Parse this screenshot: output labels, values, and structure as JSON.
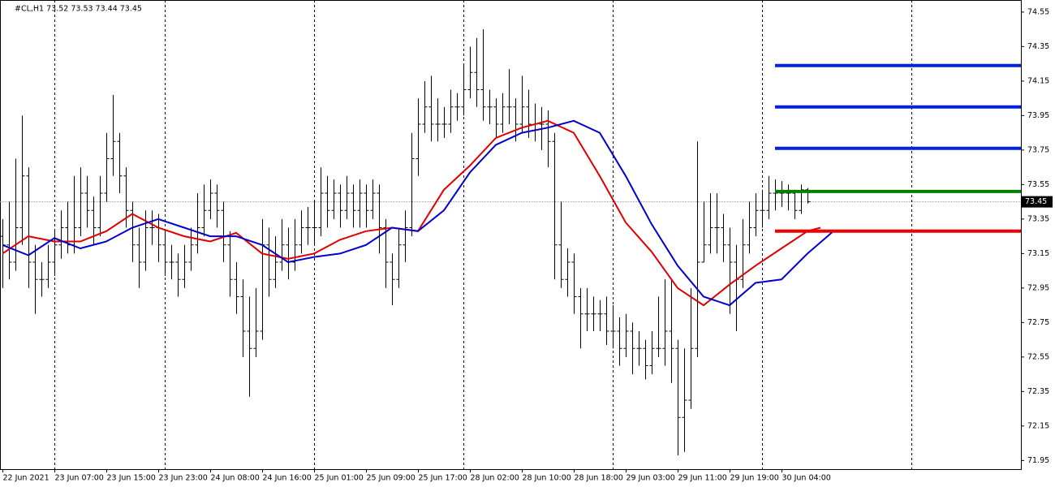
{
  "chart_data": {
    "type": "ohlc",
    "title": "#CL,H1  73.52 73.53 73.44 73.45",
    "bar_color": "#000000",
    "open": [
      73.25,
      73.2,
      73.1,
      73.3,
      73.6,
      73.1,
      73.0,
      73.0,
      73.1,
      73.2,
      73.3,
      73.2,
      73.3,
      73.5,
      73.4,
      73.3,
      73.5,
      73.7,
      73.8,
      73.6,
      73.4,
      73.2,
      73.1,
      73.3,
      73.3,
      73.2,
      73.1,
      73.1,
      73.0,
      73.1,
      73.2,
      73.3,
      73.4,
      73.5,
      73.4,
      73.2,
      73.0,
      72.9,
      72.7,
      72.6,
      72.7,
      73.2,
      73.0,
      73.1,
      73.2,
      73.1,
      73.2,
      73.3,
      73.3,
      73.3,
      73.5,
      73.4,
      73.5,
      73.4,
      73.5,
      73.4,
      73.5,
      73.4,
      73.5,
      73.3,
      73.1,
      73.0,
      73.2,
      73.3,
      73.7,
      73.9,
      74.0,
      73.9,
      73.9,
      73.9,
      74.0,
      74.0,
      74.1,
      74.2,
      74.1,
      74.0,
      74.0,
      73.9,
      74.0,
      74.0,
      73.9,
      74.0,
      73.9,
      73.9,
      73.9,
      73.8,
      73.2,
      73.0,
      73.1,
      72.9,
      72.8,
      72.8,
      72.8,
      72.8,
      72.7,
      72.7,
      72.6,
      72.7,
      72.6,
      72.6,
      72.5,
      72.6,
      72.6,
      72.7,
      72.6,
      72.2,
      72.3,
      72.6,
      73.1,
      73.2,
      73.3,
      73.3,
      73.2,
      73.1,
      73.0,
      73.2,
      73.3,
      73.4,
      73.4,
      73.5,
      73.5,
      73.5,
      73.5,
      73.4,
      73.52
    ],
    "high": [
      73.35,
      73.45,
      73.7,
      73.95,
      73.65,
      73.2,
      73.1,
      73.2,
      73.28,
      73.4,
      73.45,
      73.6,
      73.65,
      73.6,
      73.48,
      73.6,
      73.85,
      74.07,
      73.85,
      73.65,
      73.45,
      73.3,
      73.4,
      73.4,
      73.38,
      73.28,
      73.2,
      73.15,
      73.2,
      73.3,
      73.5,
      73.55,
      73.58,
      73.55,
      73.45,
      73.28,
      73.1,
      73.0,
      72.9,
      72.95,
      73.35,
      73.3,
      73.25,
      73.35,
      73.3,
      73.35,
      73.4,
      73.42,
      73.45,
      73.65,
      73.6,
      73.58,
      73.55,
      73.6,
      73.55,
      73.58,
      73.55,
      73.58,
      73.55,
      73.35,
      73.15,
      73.3,
      73.4,
      73.85,
      74.05,
      74.15,
      74.18,
      74.05,
      74.0,
      74.1,
      74.08,
      74.25,
      74.35,
      74.4,
      74.45,
      74.1,
      74.05,
      74.08,
      74.22,
      74.05,
      74.18,
      74.1,
      74.02,
      74.0,
      73.98,
      73.85,
      73.45,
      73.18,
      73.15,
      72.95,
      72.95,
      72.9,
      72.88,
      72.9,
      72.85,
      72.78,
      72.8,
      72.75,
      72.7,
      72.65,
      72.7,
      72.9,
      73.0,
      73.0,
      72.65,
      72.6,
      72.95,
      73.8,
      73.45,
      73.5,
      73.5,
      73.38,
      73.3,
      73.2,
      73.35,
      73.45,
      73.5,
      73.52,
      73.6,
      73.58,
      73.57,
      73.55,
      73.52,
      73.55,
      73.53
    ],
    "low": [
      72.95,
      73.0,
      73.05,
      73.2,
      72.95,
      72.8,
      72.9,
      72.95,
      73.02,
      73.12,
      73.15,
      73.15,
      73.25,
      73.3,
      73.2,
      73.25,
      73.45,
      73.6,
      73.5,
      73.3,
      73.1,
      72.95,
      73.05,
      73.2,
      73.1,
      73.02,
      73.0,
      72.9,
      72.95,
      73.05,
      73.15,
      73.25,
      73.35,
      73.3,
      73.1,
      72.9,
      72.8,
      72.55,
      72.32,
      72.55,
      72.65,
      72.9,
      72.95,
      73.05,
      73.0,
      73.05,
      73.15,
      73.2,
      73.2,
      73.25,
      73.3,
      73.35,
      73.3,
      73.35,
      73.3,
      73.3,
      73.3,
      73.35,
      73.15,
      72.95,
      72.85,
      72.95,
      73.1,
      73.25,
      73.6,
      73.85,
      73.8,
      73.8,
      73.82,
      73.85,
      73.92,
      73.95,
      74.05,
      74.0,
      73.92,
      73.9,
      73.82,
      73.85,
      73.9,
      73.8,
      73.85,
      73.82,
      73.8,
      73.75,
      73.65,
      73.0,
      72.95,
      72.9,
      72.8,
      72.6,
      72.7,
      72.7,
      72.7,
      72.62,
      72.6,
      72.5,
      72.55,
      72.45,
      72.5,
      72.42,
      72.45,
      72.55,
      72.5,
      72.4,
      71.98,
      72.0,
      72.25,
      72.55,
      73.1,
      73.15,
      73.15,
      73.1,
      72.8,
      72.7,
      72.95,
      73.15,
      73.25,
      73.3,
      73.35,
      73.4,
      73.42,
      73.4,
      73.35,
      73.38,
      73.44
    ],
    "close": [
      73.2,
      73.1,
      73.3,
      73.6,
      73.1,
      73.0,
      73.0,
      73.1,
      73.2,
      73.3,
      73.2,
      73.3,
      73.5,
      73.4,
      73.3,
      73.5,
      73.7,
      73.8,
      73.6,
      73.4,
      73.2,
      73.1,
      73.3,
      73.3,
      73.2,
      73.1,
      73.1,
      73.0,
      73.1,
      73.2,
      73.3,
      73.4,
      73.5,
      73.4,
      73.2,
      73.0,
      72.9,
      72.7,
      72.6,
      72.7,
      73.2,
      73.0,
      73.1,
      73.2,
      73.1,
      73.2,
      73.3,
      73.3,
      73.3,
      73.5,
      73.4,
      73.5,
      73.4,
      73.5,
      73.4,
      73.5,
      73.4,
      73.5,
      73.3,
      73.1,
      73.0,
      73.2,
      73.3,
      73.7,
      73.9,
      74.0,
      73.9,
      73.9,
      73.9,
      74.0,
      74.0,
      74.1,
      74.2,
      74.1,
      74.0,
      74.0,
      73.9,
      74.0,
      74.0,
      73.9,
      74.0,
      73.9,
      73.9,
      73.9,
      73.8,
      73.2,
      73.0,
      73.1,
      72.9,
      72.8,
      72.8,
      72.8,
      72.8,
      72.7,
      72.7,
      72.6,
      72.7,
      72.6,
      72.6,
      72.5,
      72.6,
      72.6,
      72.7,
      72.6,
      72.2,
      72.3,
      72.6,
      73.1,
      73.2,
      73.3,
      73.3,
      73.2,
      73.1,
      73.0,
      73.2,
      73.3,
      73.4,
      73.4,
      73.5,
      73.5,
      73.5,
      73.5,
      73.4,
      73.52,
      73.45
    ],
    "lines": [
      {
        "color": "#e00000",
        "x": [
          0,
          4,
          8,
          12,
          16,
          20,
          24,
          28,
          32,
          36,
          40,
          44,
          48,
          52,
          56,
          60,
          64,
          68,
          72,
          76,
          80,
          84,
          88,
          92,
          96,
          100,
          104,
          108,
          112,
          116,
          120,
          124,
          126
        ],
        "values": [
          73.15,
          73.25,
          73.22,
          73.22,
          73.28,
          73.38,
          73.3,
          73.25,
          73.22,
          73.27,
          73.15,
          73.12,
          73.15,
          73.23,
          73.28,
          73.3,
          73.28,
          73.52,
          73.66,
          73.82,
          73.88,
          73.92,
          73.85,
          73.6,
          73.33,
          73.16,
          72.95,
          72.85,
          72.97,
          73.08,
          73.18,
          73.28,
          73.3
        ]
      },
      {
        "color": "#0000cc",
        "x": [
          0,
          4,
          8,
          12,
          16,
          20,
          24,
          28,
          32,
          36,
          40,
          44,
          48,
          52,
          56,
          60,
          64,
          68,
          72,
          76,
          80,
          84,
          88,
          92,
          96,
          100,
          104,
          108,
          112,
          116,
          120,
          124,
          128
        ],
        "values": [
          73.2,
          73.14,
          73.24,
          73.18,
          73.22,
          73.3,
          73.35,
          73.3,
          73.25,
          73.25,
          73.2,
          73.1,
          73.13,
          73.15,
          73.2,
          73.3,
          73.28,
          73.4,
          73.62,
          73.78,
          73.85,
          73.88,
          73.92,
          73.85,
          73.6,
          73.32,
          73.08,
          72.9,
          72.85,
          72.98,
          73.0,
          73.15,
          73.28
        ]
      }
    ],
    "levels": [
      {
        "value": 74.24,
        "color": "#0022dd",
        "start": 119
      },
      {
        "value": 74.0,
        "color": "#0022dd",
        "start": 119
      },
      {
        "value": 73.76,
        "color": "#0022dd",
        "start": 119
      },
      {
        "value": 73.51,
        "color": "#008000",
        "start": 119
      },
      {
        "value": 73.28,
        "color": "#ee0000",
        "start": 119
      }
    ],
    "last_price": 73.45,
    "ylim": [
      71.9,
      74.62
    ],
    "yticks": [
      71.95,
      72.15,
      72.35,
      72.55,
      72.75,
      72.95,
      73.15,
      73.35,
      73.55,
      73.75,
      73.95,
      74.15,
      74.35,
      74.55
    ],
    "xlim": [
      -0.375,
      156.875
    ],
    "xticks": [
      {
        "value": 0,
        "label": "22 Jun 2021"
      },
      {
        "value": 8,
        "label": "23 Jun 07:00"
      },
      {
        "value": 16,
        "label": "23 Jun 15:00"
      },
      {
        "value": 24,
        "label": "23 Jun 23:00"
      },
      {
        "value": 32,
        "label": "24 Jun 08:00"
      },
      {
        "value": 40,
        "label": "24 Jun 16:00"
      },
      {
        "value": 48,
        "label": "25 Jun 01:00"
      },
      {
        "value": 56,
        "label": "25 Jun 09:00"
      },
      {
        "value": 64,
        "label": "25 Jun 17:00"
      },
      {
        "value": 72,
        "label": "28 Jun 02:00"
      },
      {
        "value": 80,
        "label": "28 Jun 10:00"
      },
      {
        "value": 88,
        "label": "28 Jun 18:00"
      },
      {
        "value": 96,
        "label": "29 Jun 03:00"
      },
      {
        "value": 104,
        "label": "29 Jun 11:00"
      },
      {
        "value": 112,
        "label": "29 Jun 19:00"
      },
      {
        "value": 120,
        "label": "30 Jun 04:00"
      }
    ],
    "xgrid": [
      8,
      25,
      48,
      71,
      94,
      117,
      140
    ]
  }
}
